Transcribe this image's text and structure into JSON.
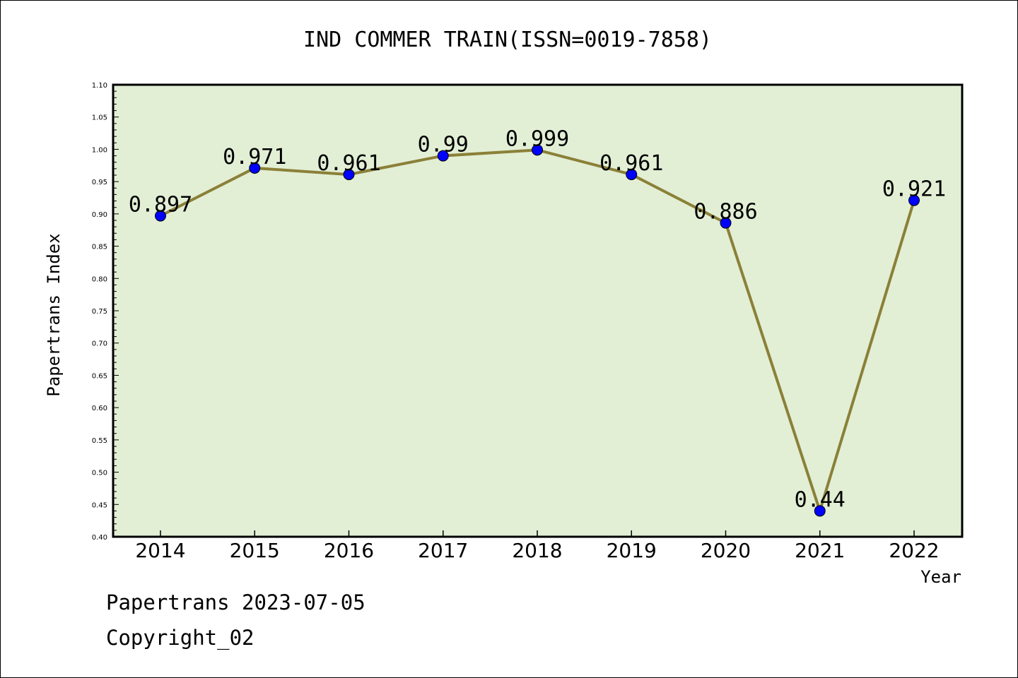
{
  "chart_data": {
    "type": "line",
    "title": "IND COMMER TRAIN(ISSN=0019-7858)",
    "xlabel": "Year",
    "ylabel": "Papertrans Index",
    "x": [
      "2014",
      "2015",
      "2016",
      "2017",
      "2018",
      "2019",
      "2020",
      "2021",
      "2022"
    ],
    "values": [
      0.897,
      0.971,
      0.961,
      0.99,
      0.999,
      0.961,
      0.886,
      0.44,
      0.921
    ],
    "data_labels": [
      "0.897",
      "0.971",
      "0.961",
      "0.99",
      "0.999",
      "0.961",
      "0.886",
      "0.44",
      "0.921"
    ],
    "ylim": [
      0.4,
      1.1
    ],
    "yticks": [
      "0.40",
      "0.45",
      "0.50",
      "0.55",
      "0.60",
      "0.65",
      "0.70",
      "0.75",
      "0.80",
      "0.85",
      "0.90",
      "0.95",
      "1.00",
      "1.05",
      "1.10"
    ],
    "grid": false,
    "colors": {
      "plot_background": "#e2efd5",
      "line": "#8b8038",
      "marker": "#0000ff"
    }
  },
  "footer": {
    "line1": "Papertrans 2023-07-05",
    "line2": "Copyright_02"
  }
}
